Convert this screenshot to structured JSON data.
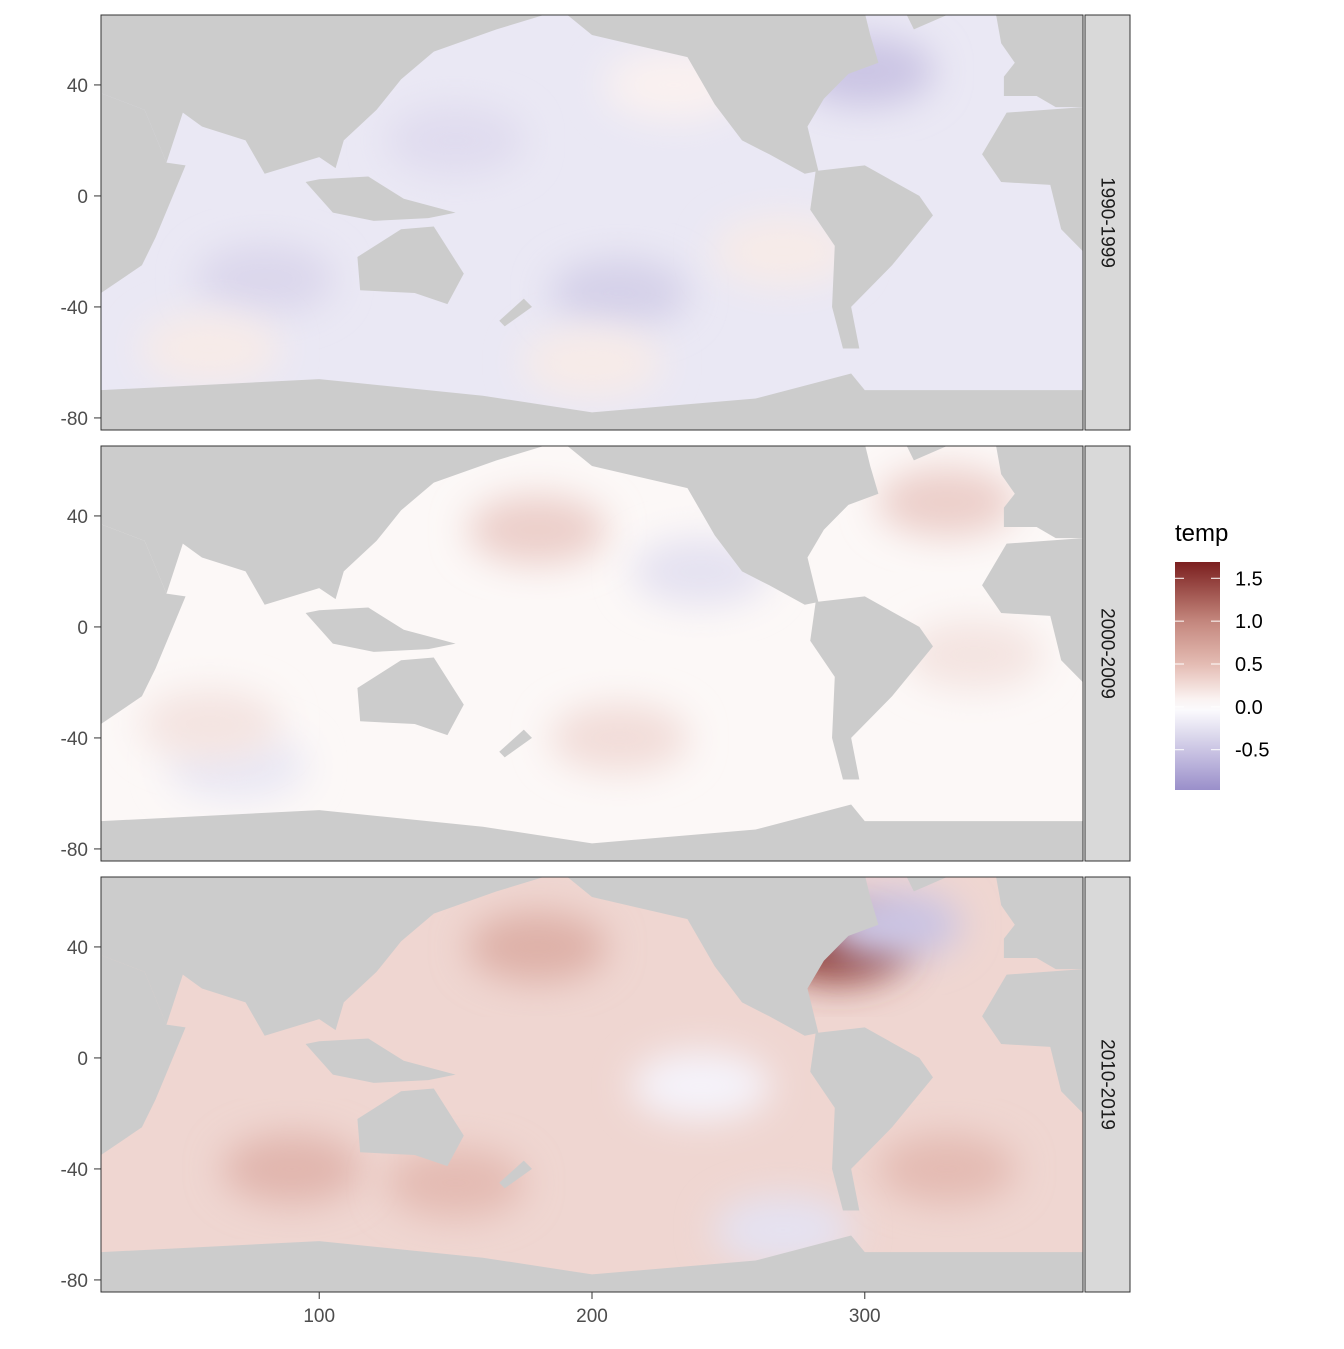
{
  "chart_data": {
    "type": "heatmap",
    "title": "",
    "xlabel": "",
    "ylabel": "",
    "xlim": [
      20,
      380
    ],
    "ylim": [
      -84,
      65
    ],
    "x_ticks": [
      100,
      200,
      300
    ],
    "y_ticks": [
      40,
      0,
      -40,
      -80
    ],
    "legend": {
      "title": "temp",
      "placement": "right",
      "range": [
        -0.97,
        1.69
      ],
      "ticks": [
        "1.5",
        "1.0",
        "0.5",
        "0.0",
        "-0.5"
      ],
      "tick_values": [
        1.5,
        1.0,
        0.5,
        0.0,
        -0.5
      ],
      "low_color": "#9a8fca",
      "mid_color": "#ffffff",
      "high_color": "#7b1f1f"
    },
    "land_color": "#cccccc",
    "facets": [
      {
        "label": "1990-1999",
        "ocean_mean": -0.2,
        "regions": [
          {
            "lon": 210,
            "lat": -35,
            "value": -0.4
          },
          {
            "lon": 80,
            "lat": -30,
            "value": -0.35
          },
          {
            "lon": 300,
            "lat": 45,
            "value": -0.5
          },
          {
            "lon": 200,
            "lat": -60,
            "value": 0.15
          },
          {
            "lon": 60,
            "lat": -55,
            "value": 0.15
          },
          {
            "lon": 230,
            "lat": 40,
            "value": 0.1
          },
          {
            "lon": 270,
            "lat": -20,
            "value": 0.15
          },
          {
            "lon": 150,
            "lat": 20,
            "value": -0.3
          }
        ]
      },
      {
        "label": "2000-2009",
        "ocean_mean": 0.05,
        "regions": [
          {
            "lon": 180,
            "lat": 35,
            "value": 0.35
          },
          {
            "lon": 240,
            "lat": 20,
            "value": -0.25
          },
          {
            "lon": 330,
            "lat": 45,
            "value": 0.35
          },
          {
            "lon": 210,
            "lat": -40,
            "value": 0.25
          },
          {
            "lon": 70,
            "lat": -50,
            "value": -0.2
          },
          {
            "lon": 60,
            "lat": -35,
            "value": 0.2
          },
          {
            "lon": 340,
            "lat": -10,
            "value": 0.2
          }
        ]
      },
      {
        "label": "2010-2019",
        "ocean_mean": 0.3,
        "regions": [
          {
            "lon": 290,
            "lat": 40,
            "value": 1.5
          },
          {
            "lon": 310,
            "lat": 48,
            "value": -0.5
          },
          {
            "lon": 180,
            "lat": 40,
            "value": 0.6
          },
          {
            "lon": 240,
            "lat": -10,
            "value": -0.1
          },
          {
            "lon": 90,
            "lat": -40,
            "value": 0.55
          },
          {
            "lon": 330,
            "lat": -40,
            "value": 0.5
          },
          {
            "lon": 270,
            "lat": -62,
            "value": -0.25
          },
          {
            "lon": 150,
            "lat": -45,
            "value": 0.5
          }
        ]
      }
    ]
  }
}
